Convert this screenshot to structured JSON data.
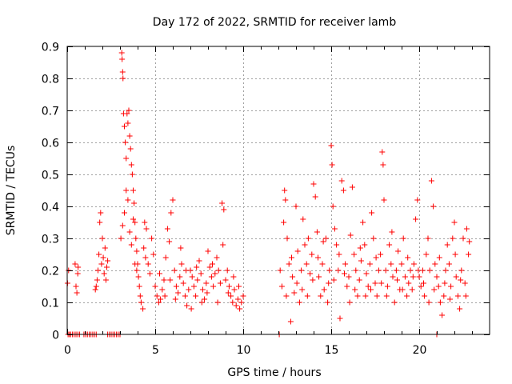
{
  "chart_data": {
    "type": "scatter",
    "title": "Day 172 of 2022, SRMTID for receiver lamb",
    "xlabel": "GPS time / hours",
    "ylabel": "SRMTID / TECUs",
    "xlim": [
      0,
      24
    ],
    "ylim": [
      0,
      0.9
    ],
    "xticks": [
      0,
      5,
      10,
      15,
      20
    ],
    "xtick_labels": [
      "0",
      "5",
      "10",
      "15",
      "20"
    ],
    "yticks": [
      0,
      0.1,
      0.2,
      0.3,
      0.4,
      0.5,
      0.6,
      0.7,
      0.8,
      0.9
    ],
    "ytick_labels": [
      "0",
      "0.1",
      "0.2",
      "0.3",
      "0.4",
      "0.5",
      "0.6",
      "0.7",
      "0.8",
      "0.9"
    ],
    "grid": true,
    "marker": "+",
    "marker_color": "#ff0000",
    "series": [
      {
        "name": "SRMTID",
        "points": [
          [
            0.05,
            0.0
          ],
          [
            0.12,
            0.0
          ],
          [
            0.2,
            0.0
          ],
          [
            0.3,
            0.0
          ],
          [
            0.4,
            0.0
          ],
          [
            0.5,
            0.0
          ],
          [
            0.6,
            0.0
          ],
          [
            0.7,
            0.0
          ],
          [
            0.95,
            0.0
          ],
          [
            1.05,
            0.0
          ],
          [
            1.15,
            0.0
          ],
          [
            1.25,
            0.0
          ],
          [
            1.35,
            0.0
          ],
          [
            1.45,
            0.0
          ],
          [
            1.55,
            0.0
          ],
          [
            1.65,
            0.0
          ],
          [
            2.3,
            0.0
          ],
          [
            2.4,
            0.0
          ],
          [
            2.5,
            0.0
          ],
          [
            2.6,
            0.0
          ],
          [
            2.7,
            0.0
          ],
          [
            2.8,
            0.0
          ],
          [
            2.9,
            0.0
          ],
          [
            3.0,
            0.0
          ],
          [
            12.05,
            0.0
          ],
          [
            21.0,
            0.0
          ],
          [
            0.02,
            0.16
          ],
          [
            0.08,
            0.2
          ],
          [
            0.45,
            0.22
          ],
          [
            0.5,
            0.15
          ],
          [
            0.55,
            0.13
          ],
          [
            0.6,
            0.19
          ],
          [
            0.62,
            0.21
          ],
          [
            1.6,
            0.14
          ],
          [
            1.65,
            0.15
          ],
          [
            1.7,
            0.17
          ],
          [
            1.75,
            0.2
          ],
          [
            1.8,
            0.25
          ],
          [
            1.85,
            0.35
          ],
          [
            1.9,
            0.38
          ],
          [
            1.95,
            0.22
          ],
          [
            2.0,
            0.3
          ],
          [
            2.05,
            0.24
          ],
          [
            2.1,
            0.19
          ],
          [
            2.15,
            0.27
          ],
          [
            2.2,
            0.17
          ],
          [
            2.25,
            0.21
          ],
          [
            2.3,
            0.23
          ],
          [
            3.1,
            0.88
          ],
          [
            3.12,
            0.86
          ],
          [
            3.15,
            0.82
          ],
          [
            3.17,
            0.8
          ],
          [
            3.2,
            0.69
          ],
          [
            3.25,
            0.65
          ],
          [
            3.3,
            0.6
          ],
          [
            3.35,
            0.55
          ],
          [
            3.4,
            0.69
          ],
          [
            3.45,
            0.66
          ],
          [
            3.5,
            0.7
          ],
          [
            3.55,
            0.62
          ],
          [
            3.6,
            0.58
          ],
          [
            3.65,
            0.53
          ],
          [
            3.7,
            0.5
          ],
          [
            3.75,
            0.45
          ],
          [
            3.8,
            0.41
          ],
          [
            3.85,
            0.35
          ],
          [
            3.9,
            0.3
          ],
          [
            3.95,
            0.26
          ],
          [
            4.0,
            0.22
          ],
          [
            4.05,
            0.18
          ],
          [
            4.1,
            0.15
          ],
          [
            4.15,
            0.12
          ],
          [
            4.2,
            0.1
          ],
          [
            4.3,
            0.08
          ],
          [
            4.35,
            0.27
          ],
          [
            4.4,
            0.35
          ],
          [
            4.45,
            0.24
          ],
          [
            4.5,
            0.33
          ],
          [
            4.6,
            0.22
          ],
          [
            4.7,
            0.19
          ],
          [
            4.8,
            0.3
          ],
          [
            4.9,
            0.25
          ],
          [
            3.05,
            0.3
          ],
          [
            3.15,
            0.34
          ],
          [
            3.25,
            0.38
          ],
          [
            3.35,
            0.45
          ],
          [
            3.45,
            0.42
          ],
          [
            3.55,
            0.32
          ],
          [
            3.65,
            0.28
          ],
          [
            3.75,
            0.36
          ],
          [
            3.85,
            0.22
          ],
          [
            3.95,
            0.2
          ],
          [
            5.0,
            0.15
          ],
          [
            5.1,
            0.12
          ],
          [
            5.2,
            0.1
          ],
          [
            5.3,
            0.11
          ],
          [
            5.4,
            0.14
          ],
          [
            5.5,
            0.17
          ],
          [
            5.6,
            0.24
          ],
          [
            5.7,
            0.33
          ],
          [
            5.8,
            0.29
          ],
          [
            5.9,
            0.38
          ],
          [
            6.0,
            0.42
          ],
          [
            6.1,
            0.2
          ],
          [
            6.2,
            0.15
          ],
          [
            6.3,
            0.13
          ],
          [
            6.4,
            0.18
          ],
          [
            6.5,
            0.22
          ],
          [
            6.6,
            0.16
          ],
          [
            6.7,
            0.12
          ],
          [
            6.8,
            0.09
          ],
          [
            6.9,
            0.14
          ],
          [
            7.0,
            0.2
          ],
          [
            7.1,
            0.18
          ],
          [
            7.2,
            0.15
          ],
          [
            7.3,
            0.12
          ],
          [
            7.4,
            0.17
          ],
          [
            7.5,
            0.23
          ],
          [
            7.6,
            0.19
          ],
          [
            7.7,
            0.14
          ],
          [
            7.8,
            0.11
          ],
          [
            7.9,
            0.16
          ],
          [
            8.0,
            0.26
          ],
          [
            8.1,
            0.21
          ],
          [
            8.2,
            0.18
          ],
          [
            8.3,
            0.15
          ],
          [
            8.4,
            0.19
          ],
          [
            8.5,
            0.24
          ],
          [
            8.6,
            0.2
          ],
          [
            8.7,
            0.16
          ],
          [
            8.8,
            0.41
          ],
          [
            8.9,
            0.39
          ],
          [
            9.0,
            0.17
          ],
          [
            9.1,
            0.2
          ],
          [
            9.2,
            0.15
          ],
          [
            9.3,
            0.12
          ],
          [
            9.4,
            0.1
          ],
          [
            9.5,
            0.14
          ],
          [
            9.6,
            0.09
          ],
          [
            9.7,
            0.11
          ],
          [
            9.8,
            0.08
          ],
          [
            9.9,
            0.1
          ],
          [
            10.0,
            0.12
          ],
          [
            5.25,
            0.19
          ],
          [
            5.55,
            0.12
          ],
          [
            5.85,
            0.17
          ],
          [
            6.15,
            0.11
          ],
          [
            6.45,
            0.27
          ],
          [
            6.75,
            0.2
          ],
          [
            7.05,
            0.08
          ],
          [
            7.35,
            0.21
          ],
          [
            7.65,
            0.1
          ],
          [
            7.95,
            0.13
          ],
          [
            8.25,
            0.22
          ],
          [
            8.55,
            0.1
          ],
          [
            8.85,
            0.28
          ],
          [
            9.15,
            0.13
          ],
          [
            9.45,
            0.18
          ],
          [
            9.75,
            0.15
          ],
          [
            12.1,
            0.2
          ],
          [
            12.2,
            0.15
          ],
          [
            12.3,
            0.35
          ],
          [
            12.35,
            0.45
          ],
          [
            12.4,
            0.42
          ],
          [
            12.5,
            0.3
          ],
          [
            12.6,
            0.22
          ],
          [
            12.7,
            0.04
          ],
          [
            12.8,
            0.18
          ],
          [
            12.9,
            0.13
          ],
          [
            13.0,
            0.4
          ],
          [
            13.1,
            0.26
          ],
          [
            13.2,
            0.1
          ],
          [
            13.3,
            0.2
          ],
          [
            13.4,
            0.36
          ],
          [
            13.5,
            0.28
          ],
          [
            13.6,
            0.22
          ],
          [
            13.7,
            0.3
          ],
          [
            13.8,
            0.19
          ],
          [
            13.9,
            0.25
          ],
          [
            14.0,
            0.47
          ],
          [
            14.1,
            0.43
          ],
          [
            14.2,
            0.32
          ],
          [
            14.3,
            0.18
          ],
          [
            14.4,
            0.12
          ],
          [
            14.5,
            0.22
          ],
          [
            14.6,
            0.14
          ],
          [
            14.7,
            0.3
          ],
          [
            14.8,
            0.1
          ],
          [
            14.9,
            0.2
          ],
          [
            15.0,
            0.59
          ],
          [
            15.05,
            0.53
          ],
          [
            15.1,
            0.4
          ],
          [
            15.2,
            0.33
          ],
          [
            15.3,
            0.28
          ],
          [
            15.4,
            0.2
          ],
          [
            15.5,
            0.05
          ],
          [
            15.6,
            0.48
          ],
          [
            15.7,
            0.45
          ],
          [
            15.8,
            0.22
          ],
          [
            15.9,
            0.15
          ],
          [
            16.0,
            0.18
          ],
          [
            16.1,
            0.31
          ],
          [
            16.2,
            0.46
          ],
          [
            16.3,
            0.25
          ],
          [
            16.4,
            0.2
          ],
          [
            16.5,
            0.12
          ],
          [
            16.6,
            0.17
          ],
          [
            16.7,
            0.23
          ],
          [
            16.8,
            0.35
          ],
          [
            16.9,
            0.28
          ],
          [
            17.0,
            0.19
          ],
          [
            17.1,
            0.15
          ],
          [
            17.2,
            0.22
          ],
          [
            17.3,
            0.38
          ],
          [
            17.4,
            0.3
          ],
          [
            17.5,
            0.16
          ],
          [
            17.6,
            0.12
          ],
          [
            17.7,
            0.2
          ],
          [
            17.8,
            0.25
          ],
          [
            17.9,
            0.57
          ],
          [
            17.95,
            0.53
          ],
          [
            18.0,
            0.42
          ],
          [
            18.1,
            0.2
          ],
          [
            18.2,
            0.15
          ],
          [
            18.3,
            0.28
          ],
          [
            18.4,
            0.22
          ],
          [
            18.5,
            0.18
          ],
          [
            18.6,
            0.1
          ],
          [
            18.7,
            0.2
          ],
          [
            18.8,
            0.26
          ],
          [
            18.9,
            0.14
          ],
          [
            19.0,
            0.22
          ],
          [
            19.1,
            0.3
          ],
          [
            19.2,
            0.18
          ],
          [
            19.3,
            0.12
          ],
          [
            19.4,
            0.16
          ],
          [
            19.5,
            0.2
          ],
          [
            19.6,
            0.14
          ],
          [
            19.7,
            0.22
          ],
          [
            19.8,
            0.36
          ],
          [
            19.9,
            0.42
          ],
          [
            20.0,
            0.18
          ],
          [
            20.1,
            0.15
          ],
          [
            20.2,
            0.2
          ],
          [
            20.3,
            0.12
          ],
          [
            20.4,
            0.25
          ],
          [
            20.5,
            0.3
          ],
          [
            20.6,
            0.2
          ],
          [
            20.7,
            0.48
          ],
          [
            20.8,
            0.4
          ],
          [
            20.9,
            0.22
          ],
          [
            21.0,
            0.18
          ],
          [
            21.1,
            0.15
          ],
          [
            21.2,
            0.1
          ],
          [
            21.3,
            0.06
          ],
          [
            21.4,
            0.12
          ],
          [
            21.5,
            0.2
          ],
          [
            21.6,
            0.28
          ],
          [
            21.7,
            0.22
          ],
          [
            21.8,
            0.15
          ],
          [
            21.9,
            0.3
          ],
          [
            22.0,
            0.35
          ],
          [
            22.1,
            0.18
          ],
          [
            22.2,
            0.12
          ],
          [
            22.3,
            0.08
          ],
          [
            22.4,
            0.2
          ],
          [
            22.5,
            0.3
          ],
          [
            22.6,
            0.16
          ],
          [
            22.7,
            0.33
          ],
          [
            22.8,
            0.25
          ],
          [
            22.85,
            0.29
          ],
          [
            12.45,
            0.12
          ],
          [
            12.75,
            0.24
          ],
          [
            13.05,
            0.16
          ],
          [
            13.35,
            0.14
          ],
          [
            13.65,
            0.12
          ],
          [
            13.95,
            0.17
          ],
          [
            14.25,
            0.24
          ],
          [
            14.55,
            0.29
          ],
          [
            14.85,
            0.16
          ],
          [
            15.15,
            0.17
          ],
          [
            15.45,
            0.25
          ],
          [
            15.75,
            0.19
          ],
          [
            16.05,
            0.1
          ],
          [
            16.35,
            0.14
          ],
          [
            16.65,
            0.27
          ],
          [
            16.95,
            0.12
          ],
          [
            17.25,
            0.14
          ],
          [
            17.55,
            0.24
          ],
          [
            17.85,
            0.16
          ],
          [
            18.15,
            0.12
          ],
          [
            18.45,
            0.32
          ],
          [
            18.75,
            0.17
          ],
          [
            19.05,
            0.14
          ],
          [
            19.35,
            0.24
          ],
          [
            19.65,
            0.18
          ],
          [
            19.95,
            0.2
          ],
          [
            20.25,
            0.16
          ],
          [
            20.55,
            0.1
          ],
          [
            20.85,
            0.14
          ],
          [
            21.15,
            0.24
          ],
          [
            21.45,
            0.16
          ],
          [
            21.75,
            0.11
          ],
          [
            22.05,
            0.25
          ],
          [
            22.35,
            0.17
          ],
          [
            22.65,
            0.12
          ]
        ]
      }
    ]
  }
}
